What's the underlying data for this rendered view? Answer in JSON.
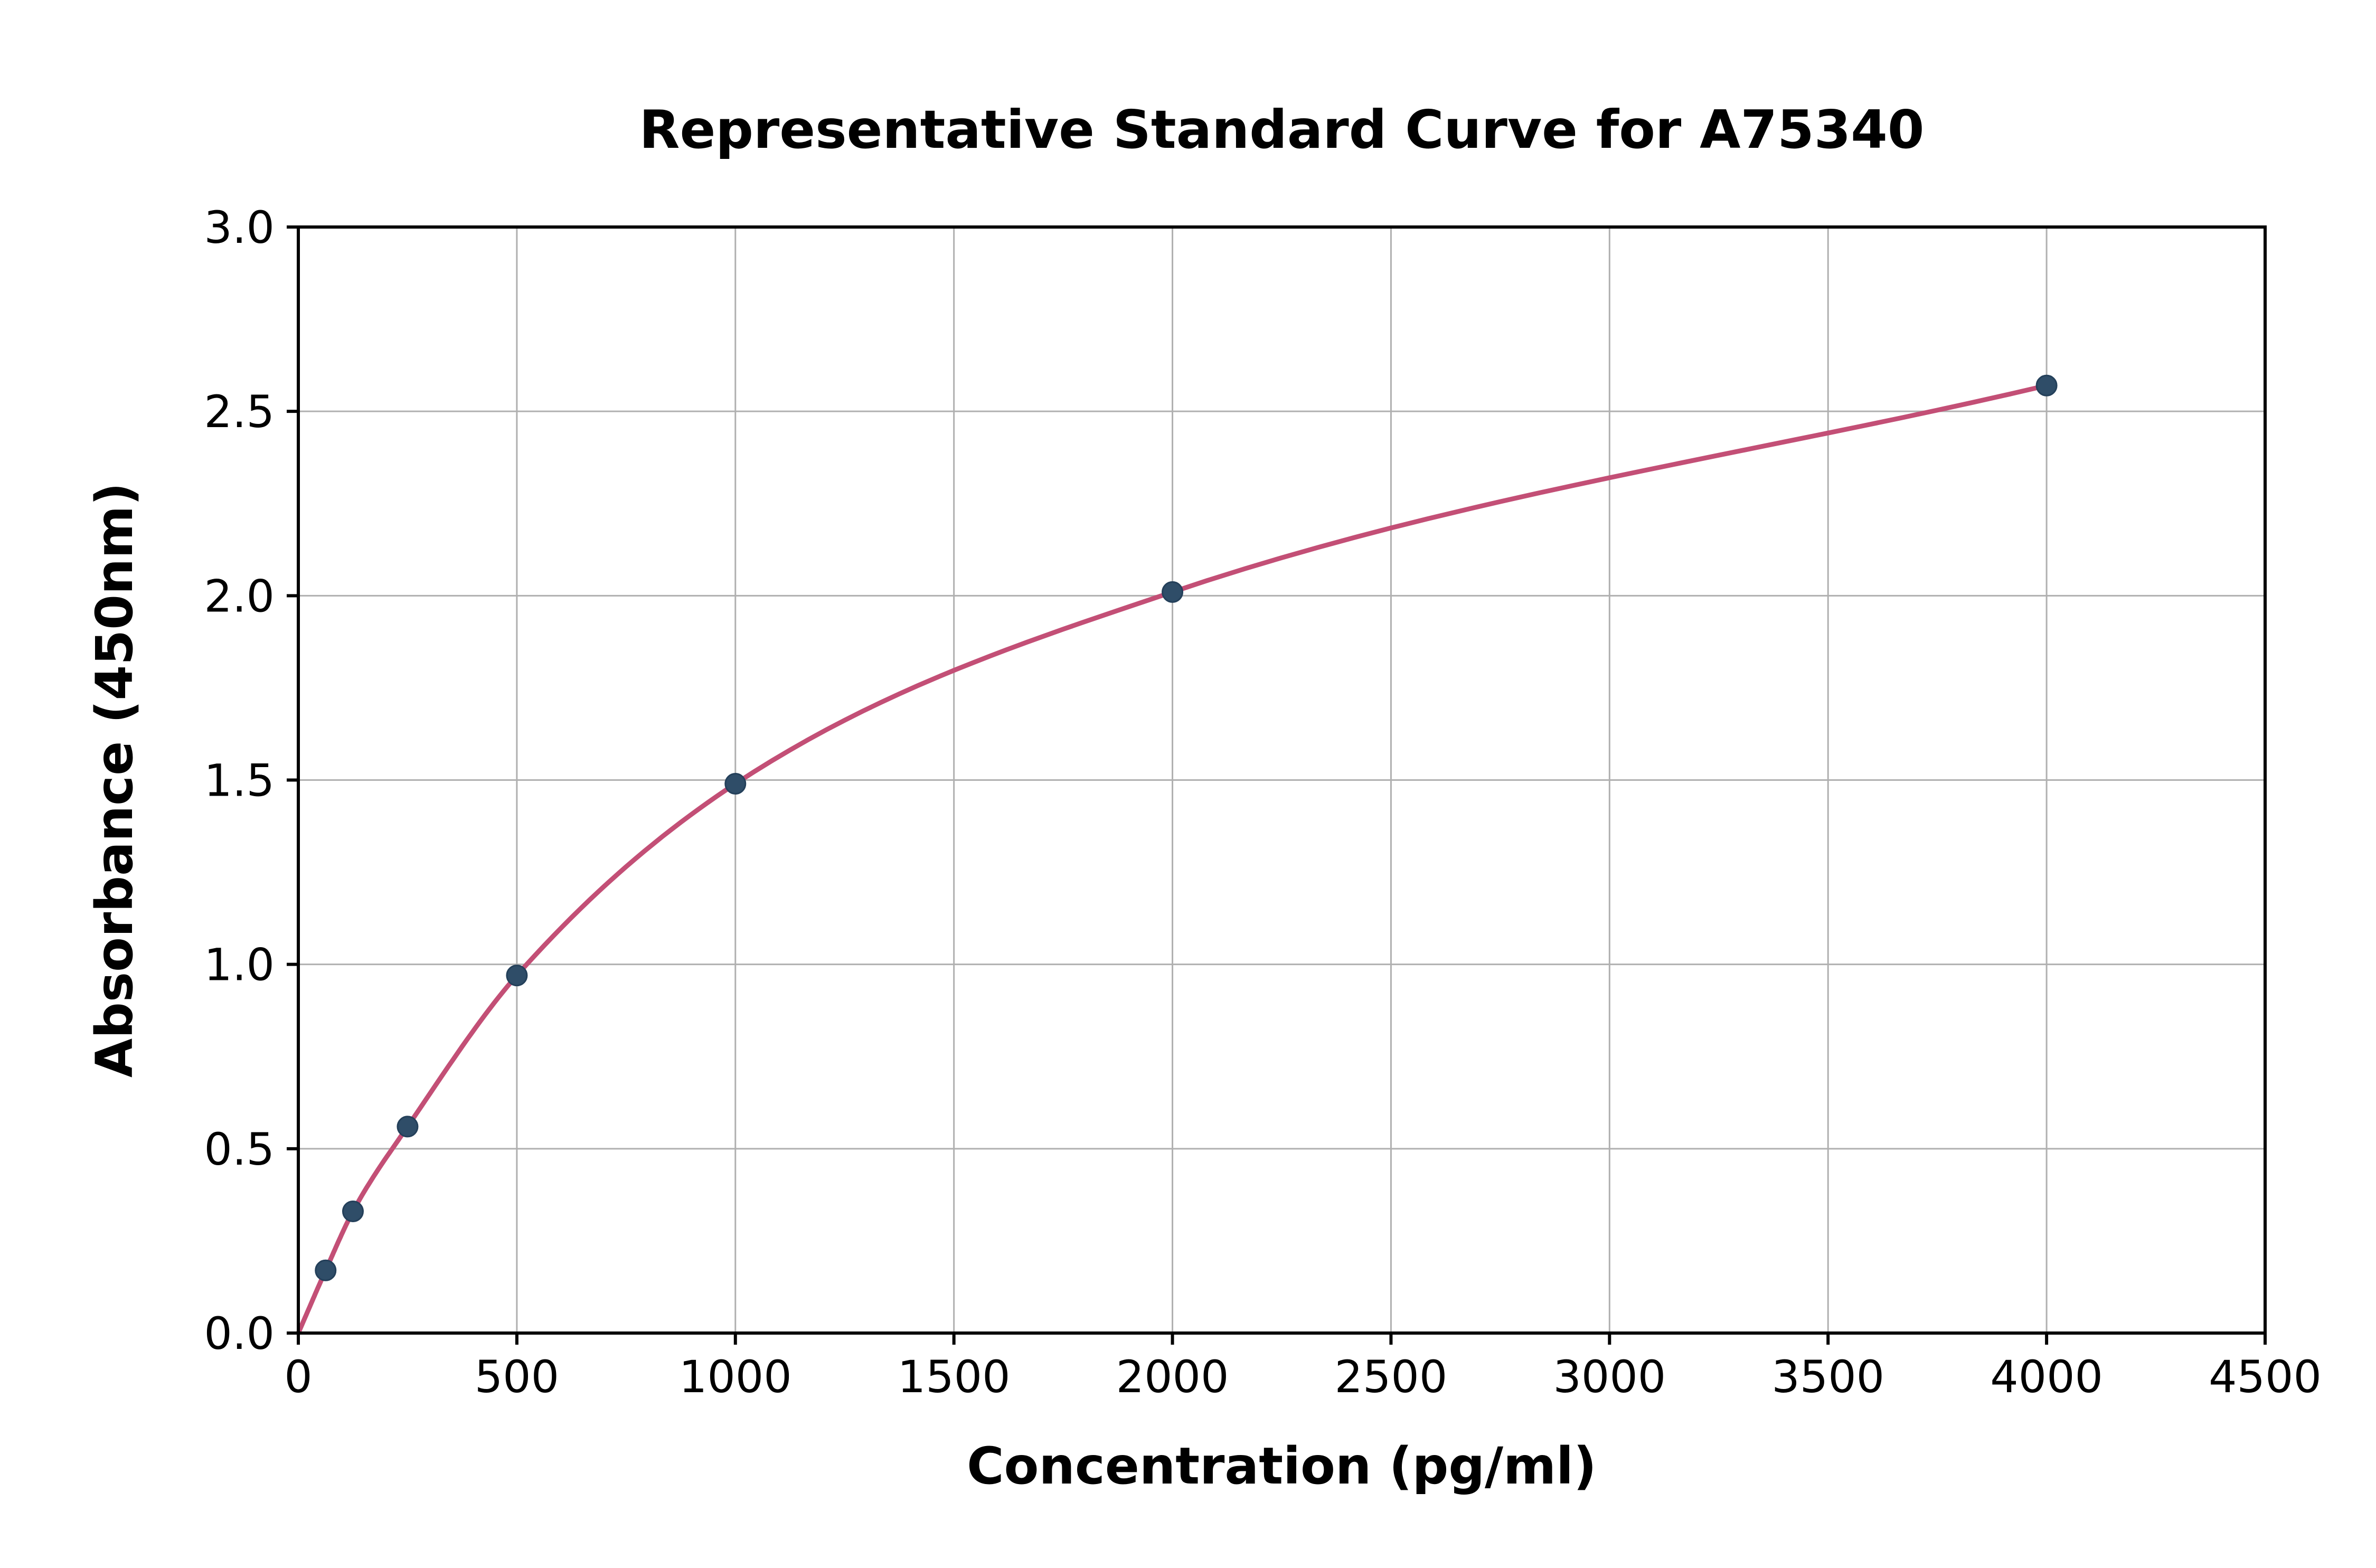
{
  "figure": {
    "background": "#ffffff"
  },
  "chart_data": {
    "type": "scatter",
    "title": "Representative Standard Curve for A75340",
    "xlabel": "Concentration (pg/ml)",
    "ylabel": "Absorbance (450nm)",
    "xlim": [
      0,
      4500
    ],
    "ylim": [
      0.0,
      3.0
    ],
    "x_ticks": [
      0,
      500,
      1000,
      1500,
      2000,
      2500,
      3000,
      3500,
      4000,
      4500
    ],
    "x_tick_labels": [
      "0",
      "500",
      "1000",
      "1500",
      "2000",
      "2500",
      "3000",
      "3500",
      "4000",
      "4500"
    ],
    "y_ticks": [
      0.0,
      0.5,
      1.0,
      1.5,
      2.0,
      2.5,
      3.0
    ],
    "y_tick_labels": [
      "0.0",
      "0.5",
      "1.0",
      "1.5",
      "2.0",
      "2.5",
      "3.0"
    ],
    "grid": true,
    "legend": "none",
    "points": [
      {
        "x": 62.5,
        "y": 0.17
      },
      {
        "x": 125,
        "y": 0.33
      },
      {
        "x": 250,
        "y": 0.56
      },
      {
        "x": 500,
        "y": 0.97
      },
      {
        "x": 1000,
        "y": 1.49
      },
      {
        "x": 2000,
        "y": 2.01
      },
      {
        "x": 4000,
        "y": 2.57
      }
    ],
    "curve_anchors": [
      [
        0,
        0.0
      ],
      [
        62.5,
        0.17
      ],
      [
        125,
        0.33
      ],
      [
        250,
        0.56
      ],
      [
        500,
        0.97
      ],
      [
        1000,
        1.49
      ],
      [
        2000,
        2.01
      ],
      [
        4000,
        2.57
      ]
    ],
    "colors": {
      "curve": "#c34f76",
      "marker": "#2f4d68",
      "marker_edge": "#24405a",
      "grid": "#b0b0b0",
      "axis": "#000000",
      "text": "#000000",
      "background": "#ffffff"
    }
  }
}
